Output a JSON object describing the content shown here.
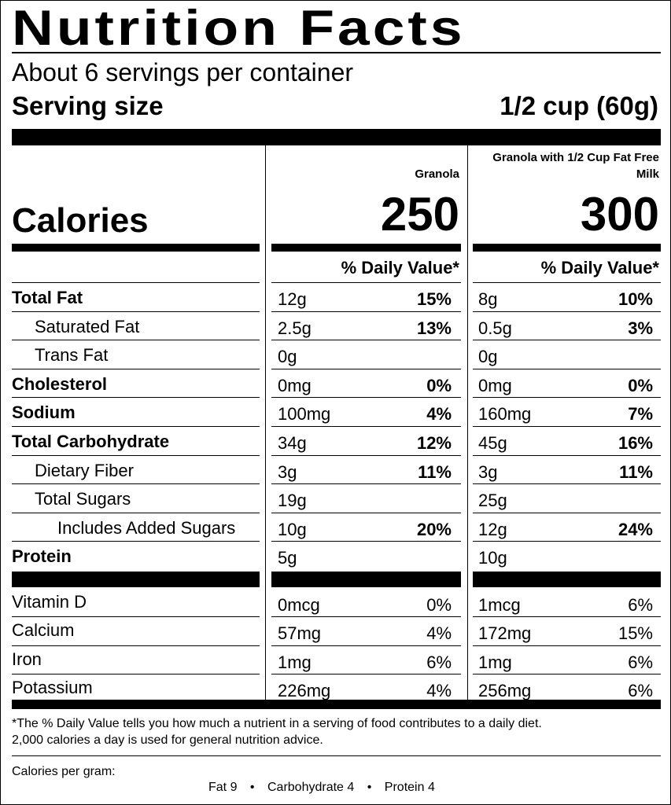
{
  "title": "Nutrition Facts",
  "servings_per_container": "About 6 servings per container",
  "serving_size": {
    "label": "Serving size",
    "value": "1/2 cup (60g)"
  },
  "columns": [
    {
      "heading": "Granola",
      "calories": "250"
    },
    {
      "heading": "Granola with 1/2 Cup Fat Free Milk",
      "calories": "300"
    }
  ],
  "calories_label": "Calories",
  "daily_value_heading": "% Daily Value*",
  "nutrients": [
    {
      "name": "Total Fat",
      "bold": true,
      "indent": 0,
      "c1_amount": "12g",
      "c1_dv": "15%",
      "c2_amount": "8g",
      "c2_dv": "10%"
    },
    {
      "name": "Saturated Fat",
      "bold": false,
      "indent": 1,
      "c1_amount": "2.5g",
      "c1_dv": "13%",
      "c2_amount": "0.5g",
      "c2_dv": "3%"
    },
    {
      "name": "Trans Fat",
      "bold": false,
      "indent": 1,
      "c1_amount": "0g",
      "c1_dv": "",
      "c2_amount": "0g",
      "c2_dv": ""
    },
    {
      "name": "Cholesterol",
      "bold": true,
      "indent": 0,
      "c1_amount": "0mg",
      "c1_dv": "0%",
      "c2_amount": "0mg",
      "c2_dv": "0%"
    },
    {
      "name": "Sodium",
      "bold": true,
      "indent": 0,
      "c1_amount": "100mg",
      "c1_dv": "4%",
      "c2_amount": "160mg",
      "c2_dv": "7%"
    },
    {
      "name": "Total Carbohydrate",
      "bold": true,
      "indent": 0,
      "c1_amount": "34g",
      "c1_dv": "12%",
      "c2_amount": "45g",
      "c2_dv": "16%"
    },
    {
      "name": "Dietary Fiber",
      "bold": false,
      "indent": 1,
      "c1_amount": "3g",
      "c1_dv": "11%",
      "c2_amount": "3g",
      "c2_dv": "11%"
    },
    {
      "name": "Total Sugars",
      "bold": false,
      "indent": 1,
      "c1_amount": "19g",
      "c1_dv": "",
      "c2_amount": "25g",
      "c2_dv": ""
    },
    {
      "name": "Includes Added Sugars",
      "bold": false,
      "indent": 2,
      "c1_amount": "10g",
      "c1_dv": "20%",
      "c2_amount": "12g",
      "c2_dv": "24%"
    },
    {
      "name": "Protein",
      "bold": true,
      "indent": 0,
      "c1_amount": "5g",
      "c1_dv": "",
      "c2_amount": "10g",
      "c2_dv": ""
    }
  ],
  "vitamins": [
    {
      "name": "Vitamin D",
      "c1_amount": "0mcg",
      "c1_dv": "0%",
      "c2_amount": "1mcg",
      "c2_dv": "6%"
    },
    {
      "name": "Calcium",
      "c1_amount": "57mg",
      "c1_dv": "4%",
      "c2_amount": "172mg",
      "c2_dv": "15%"
    },
    {
      "name": "Iron",
      "c1_amount": "1mg",
      "c1_dv": "6%",
      "c2_amount": "1mg",
      "c2_dv": "6%"
    },
    {
      "name": "Potassium",
      "c1_amount": "226mg",
      "c1_dv": "4%",
      "c2_amount": "256mg",
      "c2_dv": "6%"
    }
  ],
  "footnote": {
    "line1": "*The % Daily Value tells you how much a nutrient in a serving of food contributes to a daily diet.",
    "line2": "2,000 calories a day is used for general nutrition advice."
  },
  "calories_per_gram": {
    "label": "Calories per gram:",
    "fat": "Fat 9",
    "carbohydrate": "Carbohydrate 4",
    "protein": "Protein 4",
    "bullet": "•"
  }
}
